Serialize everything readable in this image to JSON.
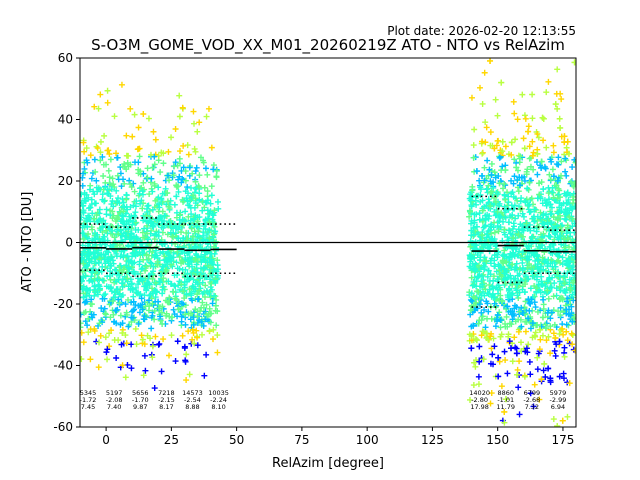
{
  "plot_date": "Plot date: 2026-02-20 12:13:55",
  "colors": {
    "zero_line": "#000000",
    "median_segments": "#000000",
    "spread_dots": "#000000",
    "point_palette": [
      "#0000ff",
      "#00bfff",
      "#21ffd6",
      "#61ff8a",
      "#b9ff42",
      "#ffd700",
      "#ffa500"
    ]
  },
  "chart_data": {
    "type": "scatter",
    "title": "S-O3M_GOME_VOD_XX_M01_20260219Z ATO - NTO vs RelAzim",
    "xlabel": "RelAzim [degree]",
    "ylabel": "ATO - NTO [DU]",
    "xlim": [
      -10,
      180
    ],
    "ylim": [
      -60,
      60
    ],
    "xticks": [
      0,
      25,
      50,
      75,
      100,
      125,
      150,
      175
    ],
    "yticks": [
      -60,
      -40,
      -20,
      0,
      20,
      40,
      60
    ],
    "grid": false,
    "marker": "+",
    "zero_line": 0,
    "clusters": [
      {
        "x_range": [
          -10,
          43
        ],
        "y_core": [
          -30,
          25
        ],
        "y_extreme": [
          -45,
          52
        ]
      },
      {
        "x_range": [
          139,
          180
        ],
        "y_core": [
          -35,
          30
        ],
        "y_extreme": [
          -60,
          60
        ]
      }
    ],
    "bins": [
      {
        "x_range": [
          -10,
          0
        ],
        "count": "5345",
        "mean": "-1.72",
        "std": "7.45",
        "upper": 6,
        "lower": -9
      },
      {
        "x_range": [
          0,
          10
        ],
        "count": "5197",
        "mean": "-2.08",
        "std": "7.40",
        "upper": 5,
        "lower": -10
      },
      {
        "x_range": [
          10,
          20
        ],
        "count": "5656",
        "mean": "-1.70",
        "std": "9.87",
        "upper": 8,
        "lower": -11
      },
      {
        "x_range": [
          20,
          30
        ],
        "count": "7218",
        "mean": "-2.15",
        "std": "8.17",
        "upper": 6,
        "lower": -10
      },
      {
        "x_range": [
          30,
          40
        ],
        "count": "14573",
        "mean": "-2.54",
        "std": "8.88",
        "upper": 6,
        "lower": -11
      },
      {
        "x_range": [
          40,
          50
        ],
        "count": "10035",
        "mean": "-2.24",
        "std": "8.10",
        "upper": 6,
        "lower": -10
      },
      {
        "x_range": [
          140,
          150
        ],
        "count": "14020",
        "mean": "-2.80",
        "std": "17.98",
        "upper": 15,
        "lower": -21
      },
      {
        "x_range": [
          150,
          160
        ],
        "count": "8860",
        "mean": "-1.01",
        "std": "11.79",
        "upper": 11,
        "lower": -13
      },
      {
        "x_range": [
          160,
          170
        ],
        "count": "6799",
        "mean": "-2.68",
        "std": "7.32",
        "upper": 5,
        "lower": -10
      },
      {
        "x_range": [
          170,
          180
        ],
        "count": "5979",
        "mean": "-2.99",
        "std": "6.94",
        "upper": 4,
        "lower": -10
      }
    ]
  }
}
